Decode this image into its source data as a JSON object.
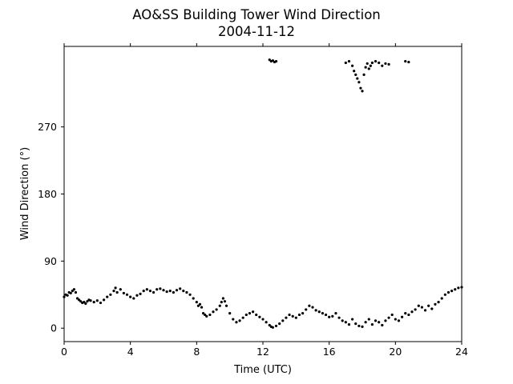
{
  "chart_data": {
    "type": "scatter",
    "title": [
      "AO&SS Building Tower Wind Direction",
      "2004-11-12"
    ],
    "xlabel": "Time (UTC)",
    "ylabel": "Wind Direction (°)",
    "xlim": [
      0,
      24
    ],
    "ylim": [
      -18,
      378
    ],
    "xticks": [
      0,
      4,
      8,
      12,
      16,
      20,
      24
    ],
    "xtick_labels": [
      "0",
      "4",
      "8",
      "12",
      "16",
      "20",
      "24"
    ],
    "yticks": [
      0,
      90,
      180,
      270
    ],
    "ytick_labels": [
      "0",
      "90",
      "180",
      "270"
    ],
    "grid": false,
    "legend": "none",
    "marker_color": "#000000",
    "series": [
      {
        "values": [
          [
            0.0,
            42
          ],
          [
            0.1,
            45
          ],
          [
            0.2,
            44
          ],
          [
            0.3,
            48
          ],
          [
            0.4,
            47
          ],
          [
            0.5,
            50
          ],
          [
            0.6,
            52
          ],
          [
            0.7,
            48
          ],
          [
            0.8,
            40
          ],
          [
            0.9,
            38
          ],
          [
            1.0,
            36
          ],
          [
            1.1,
            34
          ],
          [
            1.2,
            35
          ],
          [
            1.3,
            33
          ],
          [
            1.4,
            36
          ],
          [
            1.5,
            38
          ],
          [
            1.6,
            37
          ],
          [
            1.8,
            35
          ],
          [
            2.0,
            37
          ],
          [
            2.2,
            34
          ],
          [
            2.4,
            38
          ],
          [
            2.6,
            42
          ],
          [
            2.8,
            45
          ],
          [
            3.0,
            50
          ],
          [
            3.1,
            54
          ],
          [
            3.2,
            48
          ],
          [
            3.4,
            52
          ],
          [
            3.6,
            47
          ],
          [
            3.8,
            45
          ],
          [
            4.0,
            42
          ],
          [
            4.2,
            40
          ],
          [
            4.4,
            44
          ],
          [
            4.6,
            46
          ],
          [
            4.8,
            50
          ],
          [
            5.0,
            52
          ],
          [
            5.2,
            50
          ],
          [
            5.4,
            48
          ],
          [
            5.6,
            52
          ],
          [
            5.8,
            53
          ],
          [
            6.0,
            51
          ],
          [
            6.2,
            49
          ],
          [
            6.4,
            50
          ],
          [
            6.6,
            48
          ],
          [
            6.8,
            51
          ],
          [
            7.0,
            53
          ],
          [
            7.2,
            50
          ],
          [
            7.4,
            48
          ],
          [
            7.6,
            45
          ],
          [
            7.8,
            40
          ],
          [
            8.0,
            35
          ],
          [
            8.1,
            30
          ],
          [
            8.2,
            32
          ],
          [
            8.3,
            28
          ],
          [
            8.4,
            20
          ],
          [
            8.5,
            18
          ],
          [
            8.6,
            16
          ],
          [
            8.8,
            18
          ],
          [
            9.0,
            22
          ],
          [
            9.2,
            25
          ],
          [
            9.4,
            30
          ],
          [
            9.5,
            35
          ],
          [
            9.6,
            40
          ],
          [
            9.7,
            36
          ],
          [
            9.8,
            30
          ],
          [
            10.0,
            20
          ],
          [
            10.2,
            12
          ],
          [
            10.4,
            8
          ],
          [
            10.6,
            10
          ],
          [
            10.8,
            14
          ],
          [
            11.0,
            18
          ],
          [
            11.2,
            20
          ],
          [
            11.4,
            22
          ],
          [
            11.6,
            18
          ],
          [
            11.8,
            15
          ],
          [
            12.0,
            12
          ],
          [
            12.2,
            8
          ],
          [
            12.4,
            4
          ],
          [
            12.5,
            2
          ],
          [
            12.6,
            1
          ],
          [
            12.8,
            3
          ],
          [
            13.0,
            6
          ],
          [
            13.2,
            10
          ],
          [
            13.4,
            14
          ],
          [
            13.6,
            18
          ],
          [
            13.8,
            16
          ],
          [
            14.0,
            14
          ],
          [
            14.2,
            18
          ],
          [
            14.4,
            20
          ],
          [
            14.6,
            25
          ],
          [
            14.8,
            30
          ],
          [
            15.0,
            28
          ],
          [
            15.2,
            24
          ],
          [
            15.4,
            22
          ],
          [
            15.6,
            20
          ],
          [
            15.8,
            18
          ],
          [
            16.0,
            15
          ],
          [
            16.2,
            16
          ],
          [
            16.4,
            20
          ],
          [
            16.6,
            14
          ],
          [
            16.8,
            10
          ],
          [
            17.0,
            8
          ],
          [
            17.2,
            5
          ],
          [
            17.4,
            12
          ],
          [
            17.6,
            6
          ],
          [
            17.8,
            3
          ],
          [
            18.0,
            2
          ],
          [
            18.2,
            8
          ],
          [
            18.4,
            12
          ],
          [
            18.6,
            5
          ],
          [
            18.8,
            10
          ],
          [
            19.0,
            8
          ],
          [
            19.2,
            4
          ],
          [
            19.4,
            10
          ],
          [
            19.6,
            14
          ],
          [
            19.8,
            18
          ],
          [
            20.0,
            12
          ],
          [
            20.2,
            10
          ],
          [
            20.4,
            15
          ],
          [
            20.6,
            20
          ],
          [
            20.8,
            18
          ],
          [
            21.0,
            22
          ],
          [
            21.2,
            25
          ],
          [
            21.4,
            30
          ],
          [
            21.6,
            28
          ],
          [
            21.8,
            24
          ],
          [
            22.0,
            30
          ],
          [
            22.2,
            26
          ],
          [
            22.4,
            32
          ],
          [
            22.6,
            35
          ],
          [
            22.8,
            40
          ],
          [
            23.0,
            45
          ],
          [
            23.2,
            48
          ],
          [
            23.4,
            50
          ],
          [
            23.6,
            52
          ],
          [
            23.8,
            54
          ],
          [
            24.0,
            55
          ],
          [
            12.4,
            360
          ],
          [
            12.5,
            358
          ],
          [
            12.6,
            359
          ],
          [
            12.7,
            357
          ],
          [
            12.8,
            358
          ],
          [
            17.0,
            356
          ],
          [
            17.2,
            358
          ],
          [
            17.4,
            352
          ],
          [
            17.5,
            345
          ],
          [
            17.6,
            340
          ],
          [
            17.7,
            335
          ],
          [
            17.8,
            330
          ],
          [
            17.9,
            322
          ],
          [
            18.0,
            318
          ],
          [
            18.1,
            340
          ],
          [
            18.2,
            350
          ],
          [
            18.3,
            355
          ],
          [
            18.4,
            348
          ],
          [
            18.5,
            352
          ],
          [
            18.6,
            356
          ],
          [
            18.8,
            358
          ],
          [
            19.0,
            356
          ],
          [
            19.2,
            352
          ],
          [
            19.4,
            355
          ],
          [
            19.6,
            354
          ],
          [
            20.6,
            358
          ],
          [
            20.8,
            357
          ]
        ]
      }
    ]
  }
}
